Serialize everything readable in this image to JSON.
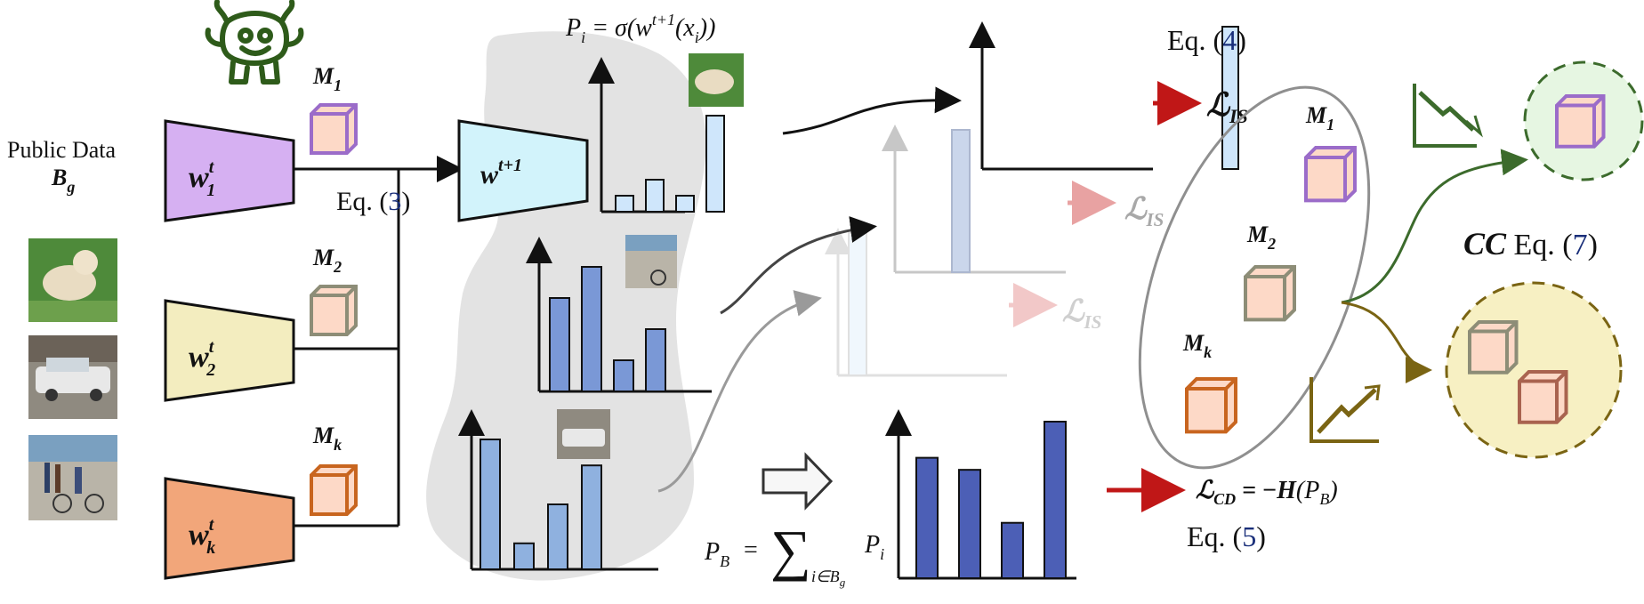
{
  "inputs": {
    "public_data_label": "Public Data",
    "batch_symbol": "B",
    "batch_sub": "g"
  },
  "models": [
    {
      "weight": "w",
      "sup": "t",
      "sub": "1",
      "model_label": "M",
      "model_sub": "1",
      "fill": "#d6b0f2",
      "cube_edge": "#9b6cc9"
    },
    {
      "weight": "w",
      "sup": "t",
      "sub": "2",
      "model_label": "M",
      "model_sub": "2",
      "fill": "#f3edbf",
      "cube_edge": "#8d8d77"
    },
    {
      "weight": "w",
      "sup": "t",
      "sub": "k",
      "model_label": "M",
      "model_sub": "k",
      "fill": "#f2a67a",
      "cube_edge": "#c8651f"
    }
  ],
  "aggregate": {
    "eq_label": "Eq. (",
    "eq_num": "3",
    "eq_close": ")",
    "weight": "w",
    "sup": "t+1",
    "fill": "#d2f3fb"
  },
  "formulas": {
    "pi_formula": "P",
    "pi_sub": "i",
    "pi_rhs": " = σ(w",
    "pi_sup": "t+1",
    "pi_tail": "(x",
    "pi_tail_sub": "i",
    "pi_end": "))",
    "pb_lhs": "P",
    "pb_lhs_sub": "B",
    "pb_eq": "=",
    "pb_sum": "∑",
    "pb_sum_sub": "i∈B",
    "pb_sum_sub2": "g",
    "pb_rhs": "P",
    "pb_rhs_sub": "i"
  },
  "losses": {
    "eq4_label": "Eq. (",
    "eq4_num": "4",
    "eq4_close": ")",
    "lis": "ℒ",
    "lis_sub": "IS",
    "lcd": "ℒ",
    "lcd_sub": "CD",
    "lcd_rhs": " = −",
    "lcd_h": "H",
    "lcd_arg": "(P",
    "lcd_arg_sub": "B",
    "lcd_end": ")",
    "eq5_label": "Eq. (",
    "eq5_num": "5",
    "eq5_close": ")"
  },
  "selection": {
    "cc_label": "CC",
    "eq7_label": " Eq. (",
    "eq7_num": "7",
    "eq7_close": ")",
    "models": [
      "M",
      "M",
      "M"
    ],
    "model_subs": [
      "1",
      "2",
      "k"
    ]
  },
  "chart_data": [
    {
      "type": "bar",
      "title": "",
      "series": [
        {
          "values": [
            1,
            2,
            1,
            6
          ]
        }
      ]
    },
    {
      "type": "bar",
      "title": "",
      "series": [
        {
          "values": [
            6,
            8,
            2,
            4
          ]
        }
      ]
    },
    {
      "type": "bar",
      "title": "",
      "series": [
        {
          "values": [
            10,
            2,
            5,
            8
          ]
        }
      ]
    },
    {
      "type": "bar",
      "title": "",
      "series": [
        {
          "values": [
            5,
            4.5,
            2.3,
            6.5
          ]
        }
      ]
    },
    {
      "type": "bar",
      "title": "",
      "series": [
        {
          "values": [
            0,
            0,
            0,
            1
          ]
        }
      ]
    }
  ],
  "colors": {
    "light_bar": "#cfe6fb",
    "mid_bar": "#7a98d6",
    "dark_bar": "#4c5fb6",
    "red_arrow": "#c01717",
    "green": "#3c6b2c",
    "olive": "#7a6413"
  }
}
